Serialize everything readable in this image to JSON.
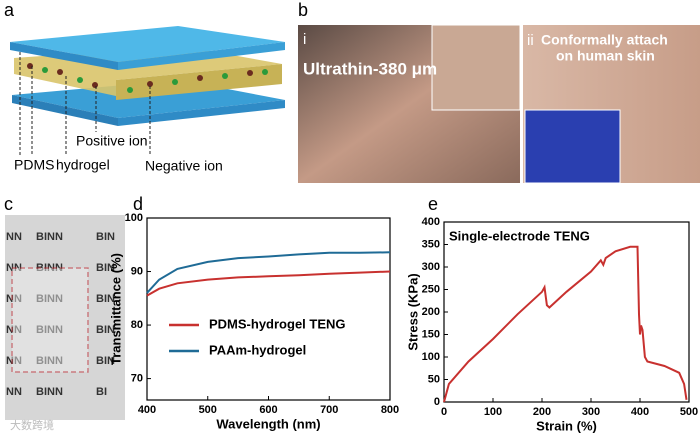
{
  "panel_a": {
    "label": "a",
    "layers": [
      "PDMS",
      "hydrogel"
    ],
    "annotations": [
      "Positive ion",
      "Negative ion"
    ]
  },
  "panel_b": {
    "label": "b",
    "photo_i": {
      "label": "i",
      "caption": "Ultrathin-380 μm"
    },
    "photo_ii": {
      "label": "ii",
      "caption": [
        "Conformally attach",
        "on  human skin"
      ]
    }
  },
  "panel_c": {
    "label": "c",
    "rows": [
      [
        "NN",
        "BINN",
        "BIN"
      ],
      [
        "NN",
        "BINN",
        "BIN"
      ],
      [
        "NN",
        "BINN",
        "BIN"
      ],
      [
        "NN",
        "BINN",
        "BIN"
      ],
      [
        "NN",
        "BINN",
        "BIN"
      ],
      [
        "NN",
        "BINN",
        "BI"
      ]
    ]
  },
  "watermark": "大数跨境",
  "chart_data": [
    {
      "type": "line",
      "panel_label": "d",
      "x_label": "Wavelength (nm)",
      "y_label": "Transmittance (%)",
      "x": [
        400,
        420,
        450,
        500,
        550,
        600,
        650,
        700,
        750,
        800
      ],
      "series": [
        {
          "name": "PDMS-hydrogel TENG",
          "color": "#c8312f",
          "values": [
            85.5,
            86.8,
            87.8,
            88.5,
            88.9,
            89.1,
            89.3,
            89.6,
            89.8,
            90.0
          ]
        },
        {
          "name": "PAAm-hydrogel",
          "color": "#1f6b96",
          "values": [
            86,
            88.5,
            90.5,
            91.8,
            92.5,
            92.8,
            93.2,
            93.5,
            93.5,
            93.6
          ]
        }
      ],
      "xlim": [
        400,
        800
      ],
      "xticks": [
        400,
        500,
        600,
        700,
        800
      ],
      "ylim": [
        66,
        100
      ],
      "yticks": [
        70,
        80,
        90,
        100
      ],
      "grid": false
    },
    {
      "type": "line",
      "panel_label": "e",
      "title": "Single-electrode TENG",
      "x_label": "Strain (%)",
      "y_label": "Stress (KPa)",
      "x": [
        0,
        10,
        50,
        100,
        150,
        200,
        205,
        210,
        215,
        250,
        300,
        320,
        325,
        330,
        350,
        380,
        395,
        398,
        400,
        402,
        405,
        410,
        415,
        450,
        480,
        490,
        495
      ],
      "values": [
        0,
        40,
        90,
        140,
        195,
        245,
        255,
        215,
        210,
        245,
        290,
        315,
        305,
        320,
        335,
        345,
        345,
        195,
        150,
        170,
        160,
        100,
        90,
        80,
        65,
        40,
        5
      ],
      "color": "#c8312f",
      "xlim": [
        0,
        500
      ],
      "xticks": [
        0,
        100,
        200,
        300,
        400,
        500
      ],
      "ylim": [
        0,
        400
      ],
      "yticks": [
        0,
        50,
        100,
        150,
        200,
        250,
        300,
        350,
        400
      ],
      "grid": false
    }
  ]
}
